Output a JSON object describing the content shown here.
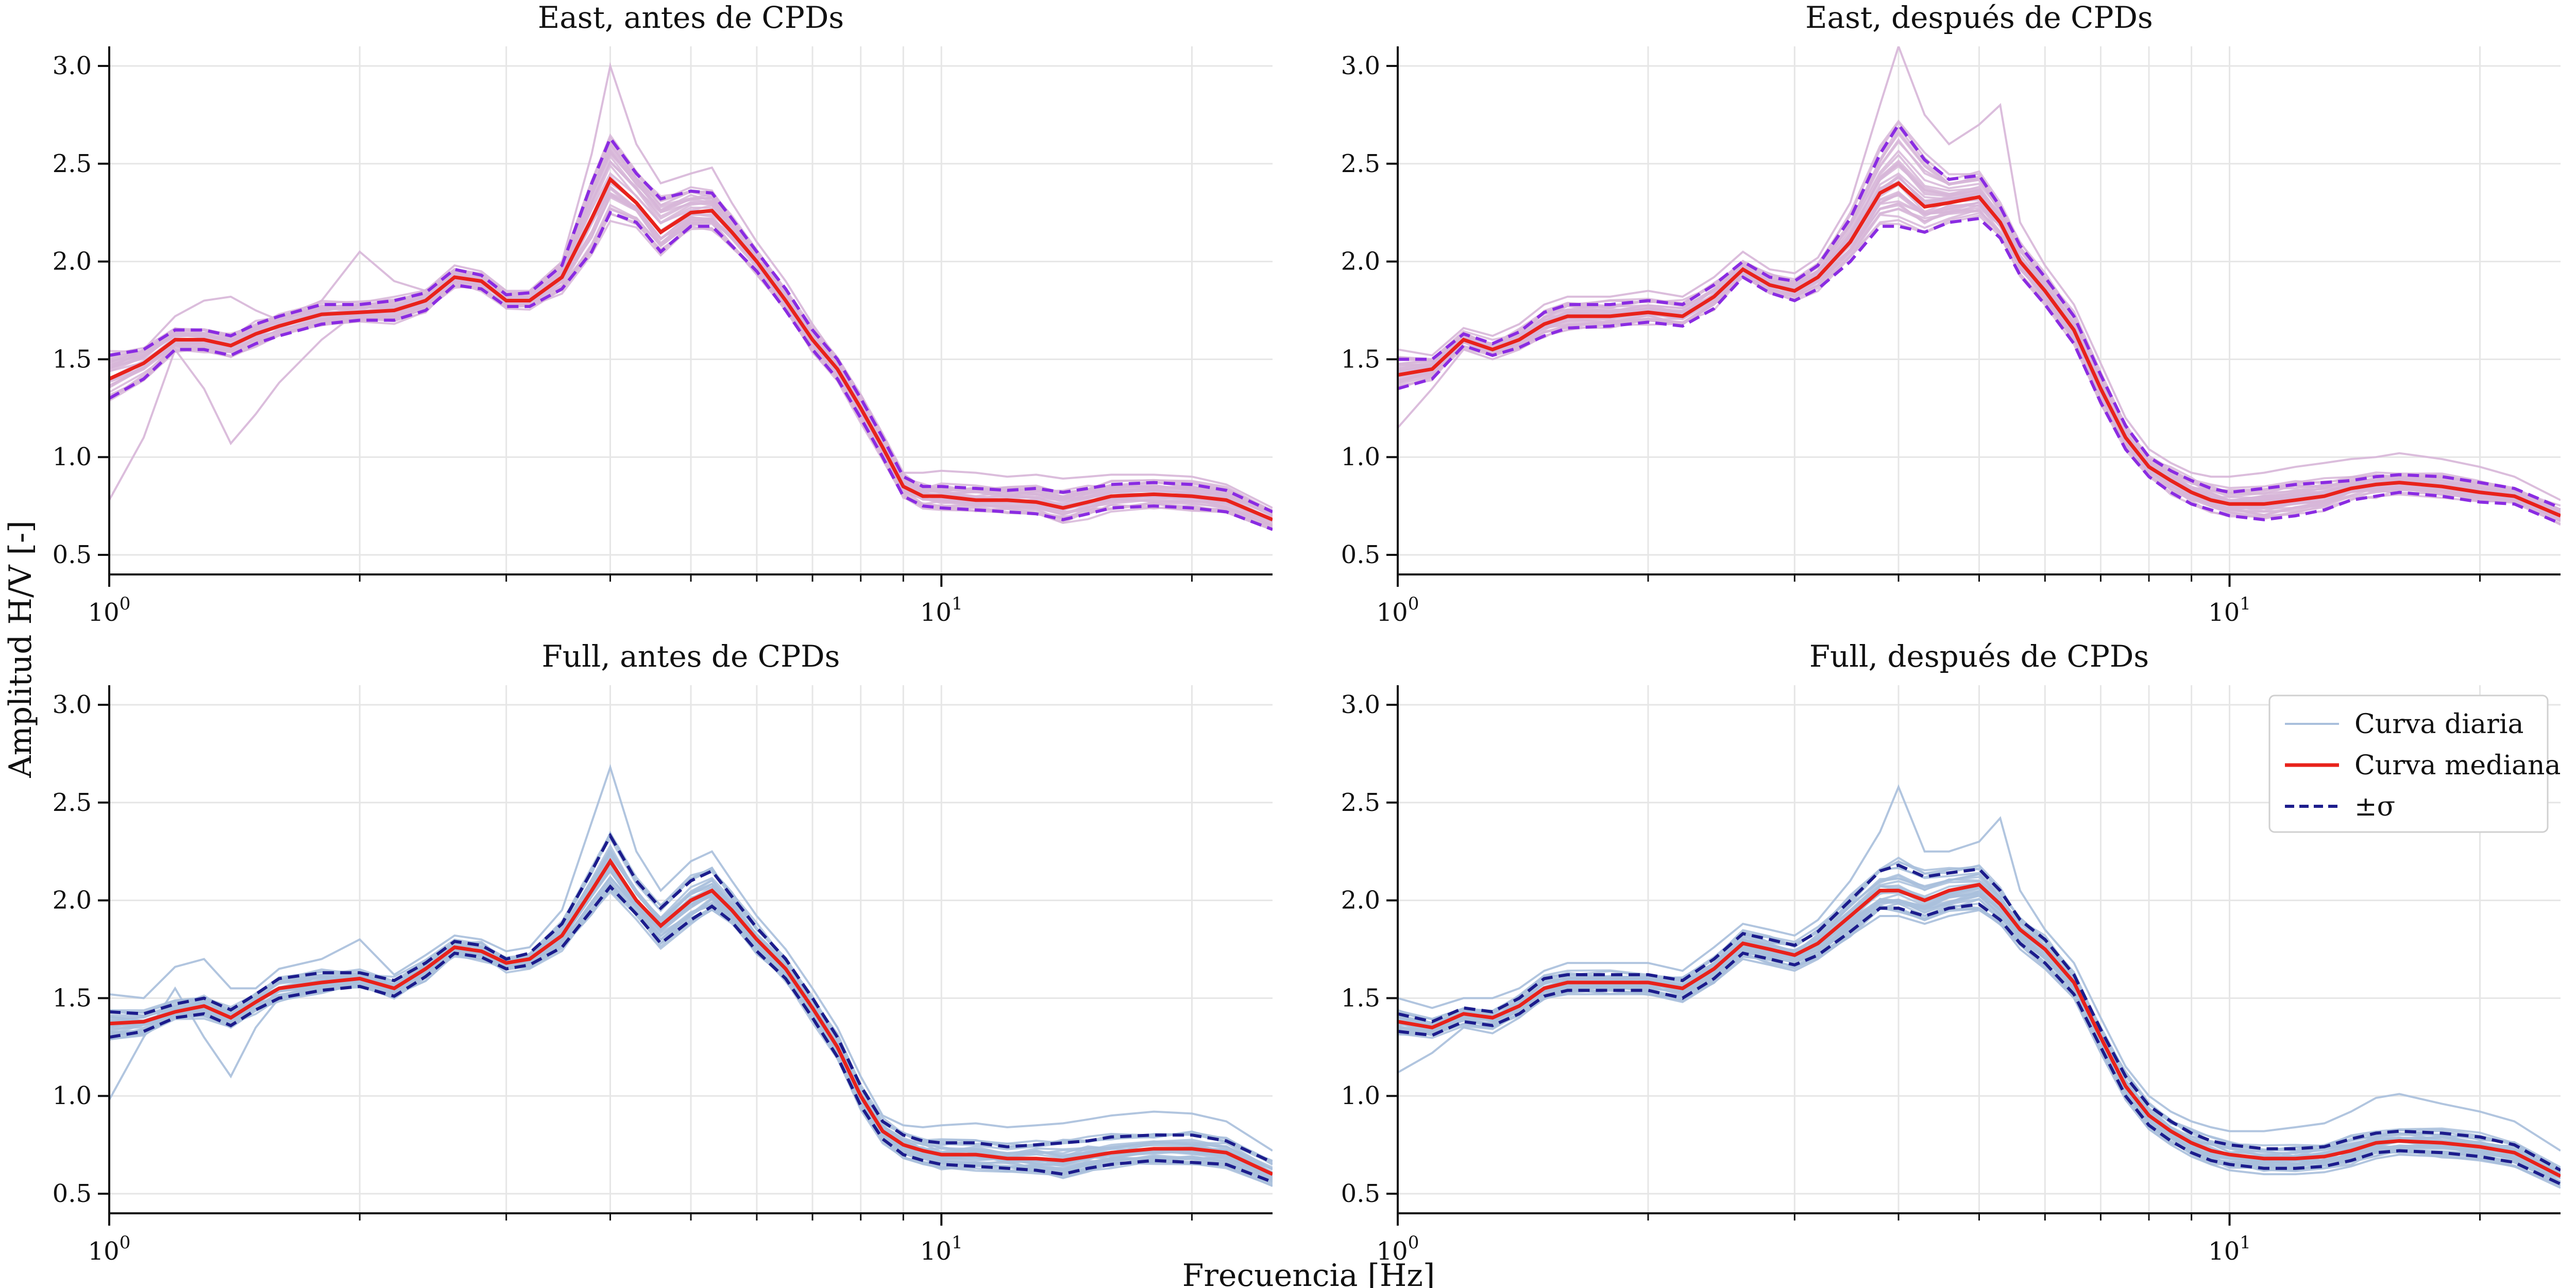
{
  "figure": {
    "xlabel": "Frecuencia [Hz]",
    "ylabel": "Amplitud H/V [-]"
  },
  "legend": {
    "daily": "Curva diaria",
    "median": "Curva mediana",
    "sigma": "±σ"
  },
  "colors": {
    "daily_east": "#d7b6d8",
    "sigma_east": "#8a2be2",
    "daily_full": "#a9bfdc",
    "sigma_full": "#1c1c8c",
    "median": "#e8221b",
    "grid": "#e6e6e6"
  },
  "chart_data": [
    {
      "type": "line",
      "title": "East, antes de CPDs",
      "group": "east",
      "xscale": "log",
      "xlim": [
        1,
        25
      ],
      "ylim": [
        0.4,
        3.1
      ],
      "xticks": [
        1,
        10
      ],
      "xtick_labels": [
        "10^0",
        "10^1"
      ],
      "yticks": [
        0.5,
        1.0,
        1.5,
        2.0,
        2.5,
        3.0
      ],
      "ytick_labels": [
        "0.5",
        "1.0",
        "1.5",
        "2.0",
        "2.5",
        "3.0"
      ],
      "grid": true,
      "x": [
        1.0,
        1.1,
        1.2,
        1.3,
        1.4,
        1.5,
        1.6,
        1.8,
        2.0,
        2.2,
        2.4,
        2.6,
        2.8,
        3.0,
        3.2,
        3.5,
        3.8,
        4.0,
        4.3,
        4.6,
        5.0,
        5.3,
        5.6,
        6.0,
        6.5,
        7.0,
        7.5,
        8.0,
        8.5,
        9.0,
        9.5,
        10.0,
        11.0,
        12.0,
        13.0,
        14.0,
        15.0,
        16.0,
        18.0,
        20.0,
        22.0,
        25.0
      ],
      "median": [
        1.4,
        1.48,
        1.6,
        1.6,
        1.57,
        1.63,
        1.67,
        1.73,
        1.74,
        1.75,
        1.8,
        1.92,
        1.9,
        1.8,
        1.8,
        1.92,
        2.22,
        2.42,
        2.3,
        2.15,
        2.25,
        2.26,
        2.15,
        2.0,
        1.8,
        1.6,
        1.45,
        1.25,
        1.05,
        0.85,
        0.8,
        0.8,
        0.78,
        0.78,
        0.77,
        0.74,
        0.77,
        0.8,
        0.81,
        0.8,
        0.78,
        0.68
      ],
      "sigma_upper": [
        1.52,
        1.55,
        1.65,
        1.65,
        1.62,
        1.68,
        1.72,
        1.78,
        1.78,
        1.8,
        1.84,
        1.96,
        1.93,
        1.83,
        1.84,
        1.98,
        2.4,
        2.63,
        2.45,
        2.32,
        2.36,
        2.35,
        2.22,
        2.05,
        1.86,
        1.65,
        1.5,
        1.3,
        1.1,
        0.9,
        0.85,
        0.85,
        0.84,
        0.83,
        0.84,
        0.82,
        0.84,
        0.86,
        0.87,
        0.86,
        0.83,
        0.72
      ],
      "sigma_lower": [
        1.3,
        1.4,
        1.55,
        1.55,
        1.52,
        1.58,
        1.62,
        1.68,
        1.7,
        1.7,
        1.75,
        1.88,
        1.86,
        1.77,
        1.77,
        1.86,
        2.05,
        2.25,
        2.2,
        2.05,
        2.18,
        2.18,
        2.08,
        1.95,
        1.75,
        1.55,
        1.4,
        1.2,
        1.0,
        0.8,
        0.75,
        0.74,
        0.73,
        0.72,
        0.71,
        0.68,
        0.71,
        0.74,
        0.75,
        0.74,
        0.72,
        0.63
      ],
      "daily_outliers": [
        [
          0.78,
          1.1,
          1.55,
          1.35,
          1.07,
          1.22,
          1.38,
          1.6,
          1.75,
          1.7,
          1.78,
          1.9,
          1.88,
          1.8,
          1.8,
          1.92,
          2.2,
          2.35,
          2.28,
          2.12,
          2.2,
          2.22,
          2.12,
          1.98,
          1.78,
          1.58,
          1.43,
          1.24,
          1.04,
          0.85,
          0.8,
          0.79,
          0.77,
          0.77,
          0.76,
          0.73,
          0.76,
          0.79,
          0.8,
          0.79,
          0.77,
          0.67
        ],
        [
          1.45,
          1.55,
          1.72,
          1.8,
          1.82,
          1.75,
          1.7,
          1.8,
          2.05,
          1.9,
          1.85,
          1.98,
          1.95,
          1.85,
          1.85,
          2.0,
          2.55,
          3.0,
          2.6,
          2.4,
          2.45,
          2.48,
          2.3,
          2.1,
          1.9,
          1.68,
          1.5,
          1.32,
          1.12,
          0.92,
          0.92,
          0.93,
          0.92,
          0.9,
          0.91,
          0.89,
          0.9,
          0.91,
          0.91,
          0.9,
          0.86,
          0.74
        ]
      ]
    },
    {
      "type": "line",
      "title": "East, después de CPDs",
      "group": "east",
      "xscale": "log",
      "xlim": [
        1,
        25
      ],
      "ylim": [
        0.4,
        3.1
      ],
      "xticks": [
        1,
        10
      ],
      "xtick_labels": [
        "10^0",
        "10^1"
      ],
      "yticks": [
        0.5,
        1.0,
        1.5,
        2.0,
        2.5,
        3.0
      ],
      "ytick_labels": [
        "0.5",
        "1.0",
        "1.5",
        "2.0",
        "2.5",
        "3.0"
      ],
      "grid": true,
      "x": [
        1.0,
        1.1,
        1.2,
        1.3,
        1.4,
        1.5,
        1.6,
        1.8,
        2.0,
        2.2,
        2.4,
        2.6,
        2.8,
        3.0,
        3.2,
        3.5,
        3.8,
        4.0,
        4.3,
        4.6,
        5.0,
        5.3,
        5.6,
        6.0,
        6.5,
        7.0,
        7.5,
        8.0,
        8.5,
        9.0,
        9.5,
        10.0,
        11.0,
        12.0,
        13.0,
        14.0,
        15.0,
        16.0,
        18.0,
        20.0,
        22.0,
        25.0
      ],
      "median": [
        1.42,
        1.45,
        1.6,
        1.55,
        1.6,
        1.68,
        1.72,
        1.72,
        1.74,
        1.72,
        1.82,
        1.96,
        1.88,
        1.85,
        1.92,
        2.1,
        2.35,
        2.4,
        2.28,
        2.3,
        2.33,
        2.2,
        2.0,
        1.85,
        1.65,
        1.35,
        1.1,
        0.95,
        0.88,
        0.82,
        0.78,
        0.76,
        0.76,
        0.78,
        0.8,
        0.84,
        0.86,
        0.87,
        0.85,
        0.82,
        0.8,
        0.7
      ],
      "sigma_upper": [
        1.5,
        1.5,
        1.63,
        1.58,
        1.64,
        1.74,
        1.78,
        1.78,
        1.8,
        1.78,
        1.88,
        2.0,
        1.92,
        1.9,
        1.98,
        2.22,
        2.55,
        2.7,
        2.52,
        2.42,
        2.44,
        2.28,
        2.08,
        1.92,
        1.72,
        1.42,
        1.16,
        1.0,
        0.93,
        0.88,
        0.84,
        0.82,
        0.84,
        0.86,
        0.87,
        0.88,
        0.9,
        0.91,
        0.9,
        0.87,
        0.84,
        0.74
      ],
      "sigma_lower": [
        1.35,
        1.4,
        1.57,
        1.52,
        1.56,
        1.62,
        1.66,
        1.67,
        1.69,
        1.67,
        1.76,
        1.92,
        1.84,
        1.8,
        1.86,
        2.0,
        2.18,
        2.18,
        2.15,
        2.2,
        2.22,
        2.12,
        1.93,
        1.78,
        1.58,
        1.28,
        1.04,
        0.9,
        0.82,
        0.76,
        0.73,
        0.7,
        0.68,
        0.7,
        0.73,
        0.78,
        0.8,
        0.82,
        0.8,
        0.77,
        0.76,
        0.66
      ],
      "daily_outliers": [
        [
          1.15,
          1.35,
          1.55,
          1.5,
          1.55,
          1.62,
          1.65,
          1.68,
          1.7,
          1.68,
          1.78,
          1.92,
          1.85,
          1.82,
          1.88,
          2.05,
          2.3,
          2.35,
          2.25,
          2.28,
          2.3,
          2.18,
          1.98,
          1.83,
          1.63,
          1.33,
          1.08,
          0.93,
          0.86,
          0.8,
          0.76,
          0.74,
          0.74,
          0.76,
          0.78,
          0.82,
          0.84,
          0.85,
          0.83,
          0.8,
          0.78,
          0.68
        ],
        [
          1.55,
          1.52,
          1.66,
          1.62,
          1.68,
          1.78,
          1.82,
          1.82,
          1.85,
          1.82,
          1.92,
          2.05,
          1.96,
          1.94,
          2.02,
          2.3,
          2.8,
          3.1,
          2.75,
          2.6,
          2.7,
          2.8,
          2.2,
          1.98,
          1.78,
          1.48,
          1.2,
          1.04,
          0.97,
          0.92,
          0.9,
          0.9,
          0.92,
          0.95,
          0.97,
          0.99,
          1.0,
          1.02,
          0.99,
          0.95,
          0.9,
          0.78
        ]
      ]
    },
    {
      "type": "line",
      "title": "Full, antes de CPDs",
      "group": "full",
      "xscale": "log",
      "xlim": [
        1,
        25
      ],
      "ylim": [
        0.4,
        3.1
      ],
      "xticks": [
        1,
        10
      ],
      "xtick_labels": [
        "10^0",
        "10^1"
      ],
      "yticks": [
        0.5,
        1.0,
        1.5,
        2.0,
        2.5,
        3.0
      ],
      "ytick_labels": [
        "0.5",
        "1.0",
        "1.5",
        "2.0",
        "2.5",
        "3.0"
      ],
      "grid": true,
      "x": [
        1.0,
        1.1,
        1.2,
        1.3,
        1.4,
        1.5,
        1.6,
        1.8,
        2.0,
        2.2,
        2.4,
        2.6,
        2.8,
        3.0,
        3.2,
        3.5,
        3.8,
        4.0,
        4.3,
        4.6,
        5.0,
        5.3,
        5.6,
        6.0,
        6.5,
        7.0,
        7.5,
        8.0,
        8.5,
        9.0,
        9.5,
        10.0,
        11.0,
        12.0,
        13.0,
        14.0,
        15.0,
        16.0,
        18.0,
        20.0,
        22.0,
        25.0
      ],
      "median": [
        1.37,
        1.38,
        1.43,
        1.46,
        1.4,
        1.48,
        1.55,
        1.58,
        1.6,
        1.55,
        1.65,
        1.76,
        1.74,
        1.68,
        1.7,
        1.82,
        2.05,
        2.2,
        2.0,
        1.87,
        2.0,
        2.05,
        1.95,
        1.8,
        1.65,
        1.45,
        1.25,
        1.0,
        0.82,
        0.75,
        0.72,
        0.7,
        0.7,
        0.68,
        0.68,
        0.67,
        0.69,
        0.71,
        0.73,
        0.73,
        0.71,
        0.6
      ],
      "sigma_upper": [
        1.43,
        1.42,
        1.47,
        1.5,
        1.44,
        1.52,
        1.6,
        1.63,
        1.63,
        1.59,
        1.68,
        1.79,
        1.77,
        1.7,
        1.73,
        1.88,
        2.15,
        2.33,
        2.1,
        1.96,
        2.1,
        2.15,
        2.02,
        1.86,
        1.7,
        1.5,
        1.3,
        1.05,
        0.87,
        0.8,
        0.77,
        0.76,
        0.76,
        0.74,
        0.75,
        0.76,
        0.77,
        0.79,
        0.8,
        0.8,
        0.77,
        0.66
      ],
      "sigma_lower": [
        1.3,
        1.33,
        1.4,
        1.42,
        1.36,
        1.44,
        1.5,
        1.54,
        1.56,
        1.51,
        1.61,
        1.73,
        1.71,
        1.65,
        1.67,
        1.76,
        1.95,
        2.07,
        1.93,
        1.78,
        1.9,
        1.97,
        1.89,
        1.74,
        1.6,
        1.4,
        1.2,
        0.95,
        0.78,
        0.7,
        0.67,
        0.65,
        0.64,
        0.63,
        0.62,
        0.6,
        0.63,
        0.65,
        0.67,
        0.66,
        0.65,
        0.56
      ],
      "daily_outliers": [
        [
          0.98,
          1.3,
          1.55,
          1.3,
          1.1,
          1.35,
          1.5,
          1.56,
          1.58,
          1.53,
          1.63,
          1.74,
          1.72,
          1.66,
          1.68,
          1.8,
          2.02,
          2.15,
          1.97,
          1.85,
          1.98,
          2.02,
          1.92,
          1.78,
          1.63,
          1.43,
          1.23,
          0.98,
          0.8,
          0.73,
          0.7,
          0.69,
          0.69,
          0.67,
          0.67,
          0.66,
          0.68,
          0.7,
          0.72,
          0.72,
          0.7,
          0.59
        ],
        [
          1.52,
          1.5,
          1.66,
          1.7,
          1.55,
          1.55,
          1.65,
          1.7,
          1.8,
          1.62,
          1.72,
          1.82,
          1.8,
          1.74,
          1.76,
          1.95,
          2.4,
          2.68,
          2.25,
          2.05,
          2.2,
          2.25,
          2.1,
          1.92,
          1.75,
          1.55,
          1.35,
          1.1,
          0.9,
          0.85,
          0.84,
          0.85,
          0.86,
          0.84,
          0.85,
          0.86,
          0.88,
          0.9,
          0.92,
          0.91,
          0.87,
          0.72
        ]
      ]
    },
    {
      "type": "line",
      "title": "Full, después de CPDs",
      "group": "full",
      "xscale": "log",
      "xlim": [
        1,
        25
      ],
      "ylim": [
        0.4,
        3.1
      ],
      "xticks": [
        1,
        10
      ],
      "xtick_labels": [
        "10^0",
        "10^1"
      ],
      "yticks": [
        0.5,
        1.0,
        1.5,
        2.0,
        2.5,
        3.0
      ],
      "ytick_labels": [
        "0.5",
        "1.0",
        "1.5",
        "2.0",
        "2.5",
        "3.0"
      ],
      "grid": true,
      "x": [
        1.0,
        1.1,
        1.2,
        1.3,
        1.4,
        1.5,
        1.6,
        1.8,
        2.0,
        2.2,
        2.4,
        2.6,
        2.8,
        3.0,
        3.2,
        3.5,
        3.8,
        4.0,
        4.3,
        4.6,
        5.0,
        5.3,
        5.6,
        6.0,
        6.5,
        7.0,
        7.5,
        8.0,
        8.5,
        9.0,
        9.5,
        10.0,
        11.0,
        12.0,
        13.0,
        14.0,
        15.0,
        16.0,
        18.0,
        20.0,
        22.0,
        25.0
      ],
      "median": [
        1.38,
        1.35,
        1.42,
        1.4,
        1.46,
        1.55,
        1.58,
        1.58,
        1.58,
        1.55,
        1.65,
        1.78,
        1.75,
        1.72,
        1.78,
        1.92,
        2.05,
        2.05,
        2.0,
        2.05,
        2.08,
        1.98,
        1.85,
        1.75,
        1.58,
        1.3,
        1.05,
        0.9,
        0.82,
        0.76,
        0.72,
        0.7,
        0.68,
        0.68,
        0.69,
        0.72,
        0.76,
        0.77,
        0.76,
        0.74,
        0.71,
        0.59
      ],
      "sigma_upper": [
        1.42,
        1.38,
        1.45,
        1.43,
        1.5,
        1.6,
        1.62,
        1.62,
        1.62,
        1.59,
        1.7,
        1.83,
        1.8,
        1.77,
        1.84,
        2.0,
        2.15,
        2.18,
        2.12,
        2.14,
        2.16,
        2.05,
        1.9,
        1.8,
        1.62,
        1.34,
        1.1,
        0.95,
        0.87,
        0.81,
        0.77,
        0.75,
        0.73,
        0.73,
        0.74,
        0.78,
        0.81,
        0.82,
        0.81,
        0.79,
        0.75,
        0.62
      ],
      "sigma_lower": [
        1.33,
        1.31,
        1.38,
        1.36,
        1.42,
        1.51,
        1.54,
        1.54,
        1.54,
        1.5,
        1.6,
        1.73,
        1.7,
        1.67,
        1.72,
        1.84,
        1.96,
        1.96,
        1.92,
        1.96,
        1.98,
        1.9,
        1.78,
        1.68,
        1.52,
        1.25,
        1.0,
        0.85,
        0.77,
        0.71,
        0.67,
        0.65,
        0.63,
        0.63,
        0.64,
        0.67,
        0.71,
        0.72,
        0.71,
        0.69,
        0.66,
        0.55
      ],
      "daily_outliers": [
        [
          1.12,
          1.22,
          1.35,
          1.32,
          1.4,
          1.5,
          1.52,
          1.52,
          1.52,
          1.48,
          1.58,
          1.7,
          1.67,
          1.64,
          1.7,
          1.82,
          1.92,
          1.92,
          1.88,
          1.92,
          1.95,
          1.88,
          1.75,
          1.65,
          1.5,
          1.22,
          0.98,
          0.83,
          0.75,
          0.69,
          0.65,
          0.62,
          0.6,
          0.6,
          0.61,
          0.64,
          0.68,
          0.7,
          0.69,
          0.67,
          0.64,
          0.53
        ],
        [
          1.5,
          1.45,
          1.5,
          1.5,
          1.55,
          1.64,
          1.68,
          1.68,
          1.68,
          1.64,
          1.76,
          1.88,
          1.85,
          1.82,
          1.9,
          2.1,
          2.35,
          2.58,
          2.25,
          2.25,
          2.3,
          2.42,
          2.05,
          1.85,
          1.68,
          1.4,
          1.15,
          1.0,
          0.92,
          0.87,
          0.84,
          0.82,
          0.82,
          0.84,
          0.86,
          0.92,
          0.99,
          1.01,
          0.96,
          0.92,
          0.87,
          0.72
        ]
      ]
    }
  ]
}
